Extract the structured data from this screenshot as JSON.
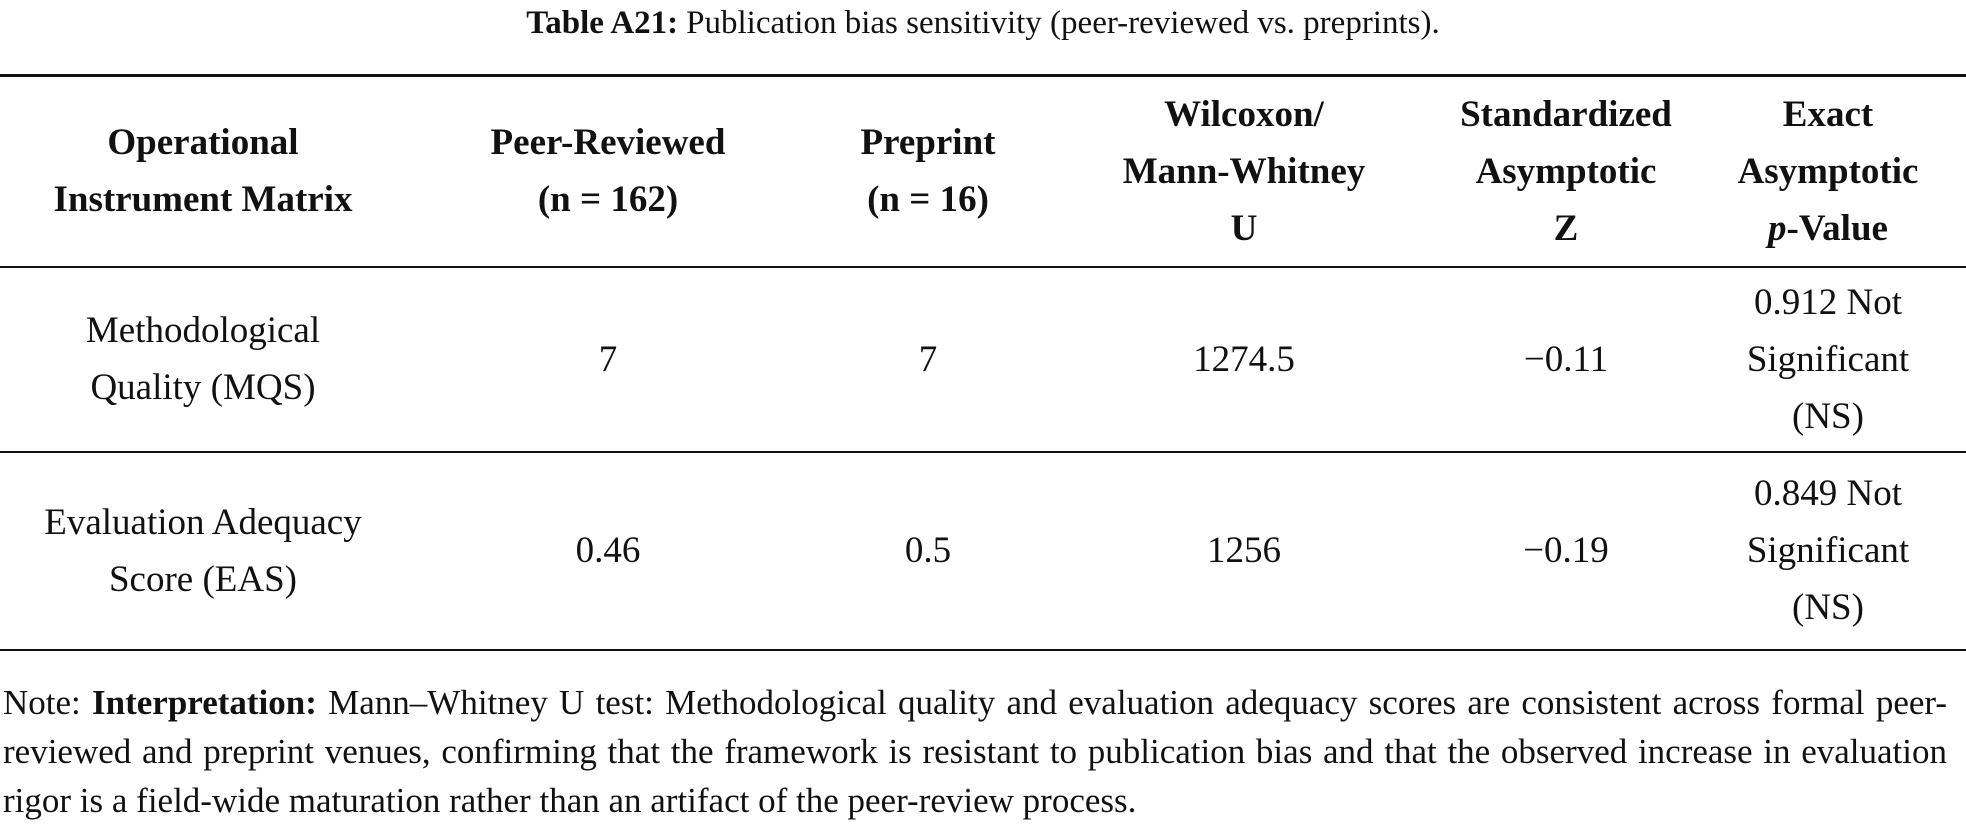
{
  "title": {
    "label": "Table A21:",
    "text": "Publication bias sensitivity (peer-reviewed vs. preprints)."
  },
  "table": {
    "header": [
      [
        "Operational",
        "Instrument Matrix"
      ],
      [
        "Peer-Reviewed",
        "(n = 162)"
      ],
      [
        "Preprint",
        "(n = 16)"
      ],
      [
        "Wilcoxon/",
        "Mann-Whitney",
        "U"
      ],
      [
        "Standardized",
        "Asymptotic",
        "Z"
      ],
      [
        "Exact",
        "Asymptotic",
        {
          "italic": "p",
          "text": "-Value"
        }
      ]
    ],
    "rows": [
      [
        [
          "Methodological",
          "Quality (MQS)"
        ],
        [
          "7"
        ],
        [
          "7"
        ],
        [
          "1274.5"
        ],
        [
          "−0.11"
        ],
        [
          "0.912 Not",
          "Significant",
          "(NS)"
        ]
      ],
      [
        [
          "Evaluation Adequacy",
          "Score (EAS)"
        ],
        [
          "0.46"
        ],
        [
          "0.5"
        ],
        [
          "1256"
        ],
        [
          "−0.19"
        ],
        [
          "0.849 Not",
          "Significant",
          "(NS)"
        ]
      ]
    ]
  },
  "note": {
    "prefix": "Note:",
    "label": "Interpretation:",
    "text": "Mann–Whitney U test: Methodological quality and evaluation adequacy scores are consistent across formal peer-reviewed and preprint venues, confirming that the framework is resistant to publication bias and that the observed increase in evaluation rigor is a field-wide maturation rather than an artifact of the peer-review process."
  }
}
